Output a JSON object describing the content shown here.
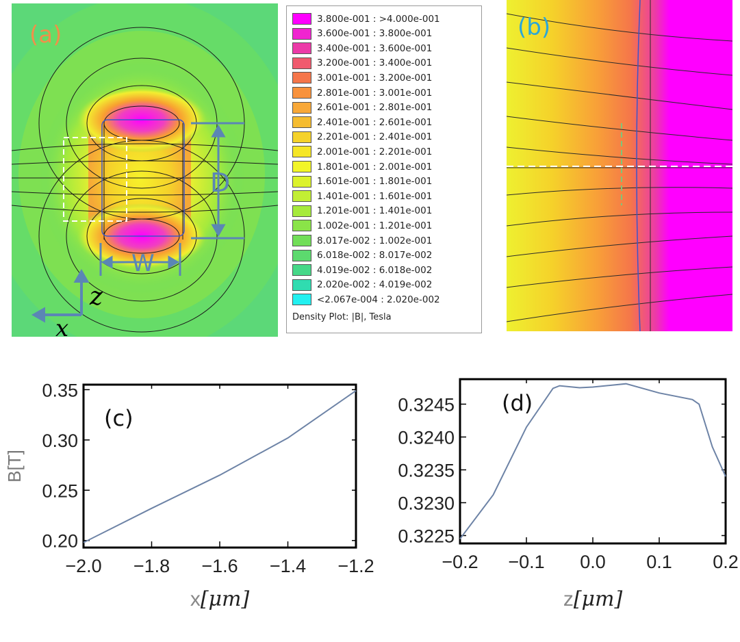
{
  "panel_a": {
    "label": "(a)",
    "label_color": "#f0904a",
    "dim_d": "D",
    "dim_w": "W",
    "axis_z": "z",
    "axis_x": "x",
    "accent": "#5b86b5"
  },
  "panel_b": {
    "label": "(b)",
    "label_color": "#2aa7d8"
  },
  "legend": {
    "title": "Density Plot: |B|, Tesla",
    "entries": [
      {
        "range": "3.800e-001 : >4.000e-001",
        "color": "#ff00ff"
      },
      {
        "range": "3.600e-001 : 3.800e-001",
        "color": "#f024d0"
      },
      {
        "range": "3.400e-001 : 3.600e-001",
        "color": "#ec3aa8"
      },
      {
        "range": "3.200e-001 : 3.400e-001",
        "color": "#f05a6e"
      },
      {
        "range": "3.001e-001 : 3.200e-001",
        "color": "#f5764a"
      },
      {
        "range": "2.801e-001 : 3.001e-001",
        "color": "#f8923c"
      },
      {
        "range": "2.601e-001 : 2.801e-001",
        "color": "#f8a838"
      },
      {
        "range": "2.401e-001 : 2.601e-001",
        "color": "#f5bc30"
      },
      {
        "range": "2.201e-001 : 2.401e-001",
        "color": "#f5d22a"
      },
      {
        "range": "2.001e-001 : 2.201e-001",
        "color": "#f5e626"
      },
      {
        "range": "1.801e-001 : 2.001e-001",
        "color": "#f2f528"
      },
      {
        "range": "1.601e-001 : 1.801e-001",
        "color": "#dcf22c"
      },
      {
        "range": "1.401e-001 : 1.601e-001",
        "color": "#c2ee34"
      },
      {
        "range": "1.201e-001 : 1.401e-001",
        "color": "#a6ea3c"
      },
      {
        "range": "1.002e-001 : 1.201e-001",
        "color": "#8ae448"
      },
      {
        "range": "8.017e-002 : 1.002e-001",
        "color": "#72de58"
      },
      {
        "range": "6.018e-002 : 8.017e-002",
        "color": "#5cda6e"
      },
      {
        "range": "4.019e-002 : 6.018e-002",
        "color": "#46d888"
      },
      {
        "range": "2.020e-002 : 4.019e-002",
        "color": "#30dcb0"
      },
      {
        "range": "<2.067e-004 : 2.020e-002",
        "color": "#22f0f0"
      }
    ]
  },
  "chart_data": [
    {
      "type": "line",
      "panel": "(c)",
      "xlabel_var": "x",
      "xlabel_unit": "[μm]",
      "ylabel": "B[T]",
      "x": [
        -2.0,
        -1.8,
        -1.6,
        -1.4,
        -1.2
      ],
      "y": [
        0.198,
        0.232,
        0.265,
        0.302,
        0.349
      ],
      "xlim": [
        -2.0,
        -1.2
      ],
      "ylim": [
        0.193,
        0.355
      ],
      "xticks": [
        -2.0,
        -1.8,
        -1.6,
        -1.4,
        -1.2
      ],
      "xtick_labels": [
        "−2.0",
        "−1.8",
        "−1.6",
        "−1.4",
        "−1.2"
      ],
      "yticks": [
        0.2,
        0.25,
        0.3,
        0.35
      ],
      "ytick_labels": [
        "0.20",
        "0.25",
        "0.30",
        "0.35"
      ],
      "line_color": "#6d83a6"
    },
    {
      "type": "line",
      "panel": "(d)",
      "xlabel_var": "z",
      "xlabel_unit": "[μm]",
      "ylabel": "",
      "x": [
        -0.2,
        -0.15,
        -0.1,
        -0.06,
        -0.05,
        -0.02,
        0.0,
        0.05,
        0.1,
        0.15,
        0.16,
        0.18,
        0.2
      ],
      "y": [
        0.32245,
        0.32312,
        0.32415,
        0.32474,
        0.32478,
        0.32475,
        0.32476,
        0.32481,
        0.32467,
        0.32457,
        0.3245,
        0.32385,
        0.3234
      ],
      "xlim": [
        -0.2,
        0.2
      ],
      "ylim": [
        0.32238,
        0.32488
      ],
      "xticks": [
        -0.2,
        -0.1,
        0.0,
        0.1,
        0.2
      ],
      "xtick_labels": [
        "−0.2",
        "−0.1",
        "0.0",
        "0.1",
        "0.2"
      ],
      "yticks": [
        0.3225,
        0.323,
        0.3235,
        0.324,
        0.3245
      ],
      "ytick_labels": [
        "0.3225",
        "0.3230",
        "0.3235",
        "0.3240",
        "0.3245"
      ],
      "line_color": "#6d83a6"
    }
  ]
}
